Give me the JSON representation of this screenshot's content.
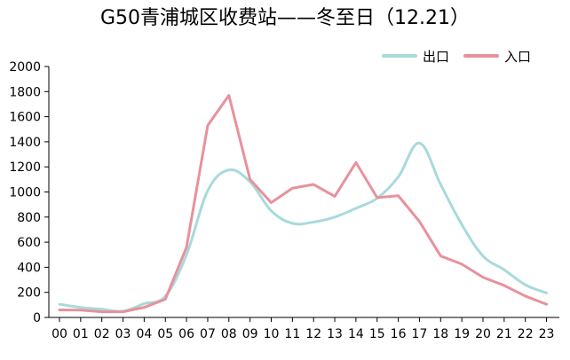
{
  "chart_data": {
    "type": "line",
    "title": "G50青浦城区收费站——冬至日（12.21）",
    "xlabel": "",
    "ylabel": "",
    "categories": [
      "00",
      "01",
      "02",
      "03",
      "04",
      "05",
      "06",
      "07",
      "08",
      "09",
      "10",
      "11",
      "12",
      "13",
      "14",
      "15",
      "16",
      "17",
      "18",
      "19",
      "20",
      "21",
      "22",
      "23"
    ],
    "ylim": [
      0,
      2000
    ],
    "yticks": [
      "0",
      "200",
      "400",
      "600",
      "800",
      "1000",
      "1200",
      "1400",
      "1600",
      "1800",
      "2000"
    ],
    "grid": false,
    "legend_position": "top-right",
    "series": [
      {
        "name": "出口",
        "color": "#a8dadc",
        "smooth": true,
        "values": [
          105,
          80,
          65,
          50,
          110,
          170,
          500,
          1010,
          1175,
          1080,
          850,
          750,
          760,
          800,
          870,
          950,
          1120,
          1390,
          1060,
          740,
          490,
          380,
          260,
          195
        ]
      },
      {
        "name": "入口",
        "color": "#e8919b",
        "smooth": false,
        "values": [
          60,
          58,
          45,
          45,
          80,
          145,
          560,
          1530,
          1770,
          1100,
          915,
          1030,
          1060,
          965,
          1235,
          955,
          970,
          765,
          490,
          425,
          320,
          255,
          170,
          105
        ]
      }
    ]
  }
}
